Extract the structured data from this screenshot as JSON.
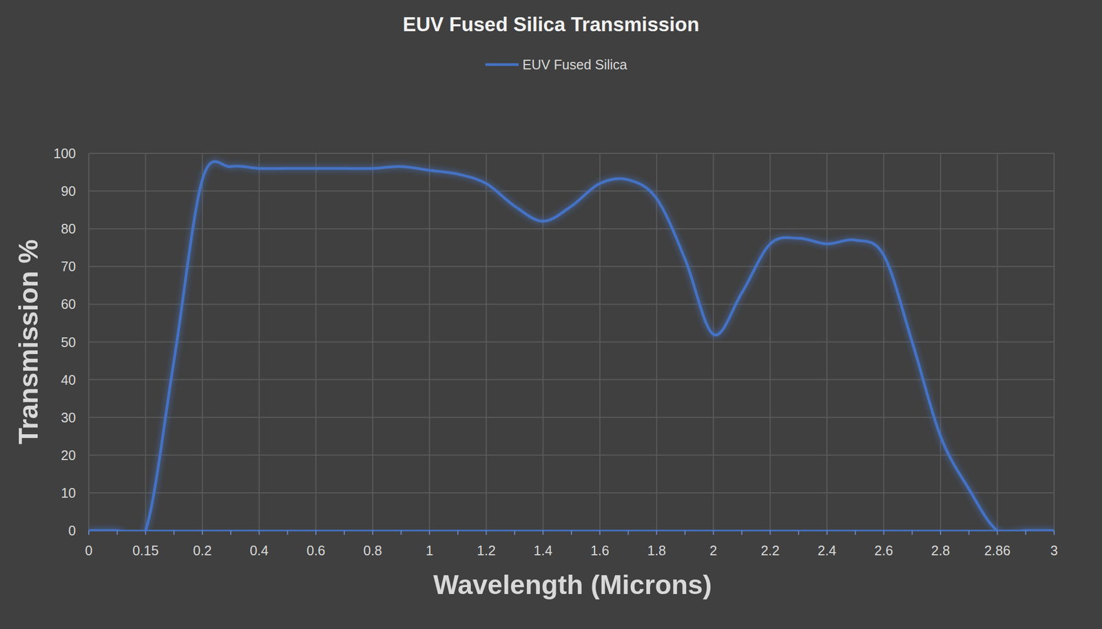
{
  "chart_data": {
    "type": "line",
    "title": "EUV Fused Silica Transmission",
    "x_label": "Wavelength (Microns)",
    "y_label": "Transmission %",
    "categories": [
      "0",
      null,
      "0.15",
      null,
      "0.2",
      null,
      "0.4",
      null,
      "0.6",
      null,
      "0.8",
      null,
      "1",
      null,
      "1.2",
      null,
      "1.4",
      null,
      "1.6",
      null,
      "1.8",
      null,
      "2",
      null,
      "2.2",
      null,
      "2.4",
      null,
      "2.6",
      null,
      "2.8",
      null,
      "2.86",
      null,
      "3"
    ],
    "series": [
      {
        "name": "EUV Fused Silica",
        "color": "#4472c4",
        "values": [
          0,
          0,
          0,
          45,
          93,
          96.5,
          96,
          96,
          96,
          96,
          96,
          96.5,
          95.5,
          94.5,
          92,
          86,
          82,
          86,
          92,
          93,
          88,
          72,
          52,
          63,
          76,
          77.5,
          76,
          77,
          73,
          50,
          25,
          11,
          0,
          0,
          0
        ]
      }
    ],
    "ylim": [
      0,
      100
    ],
    "yticks": [
      0,
      10,
      20,
      30,
      40,
      50,
      60,
      70,
      80,
      90,
      100
    ],
    "grid": true,
    "legend": "top"
  }
}
